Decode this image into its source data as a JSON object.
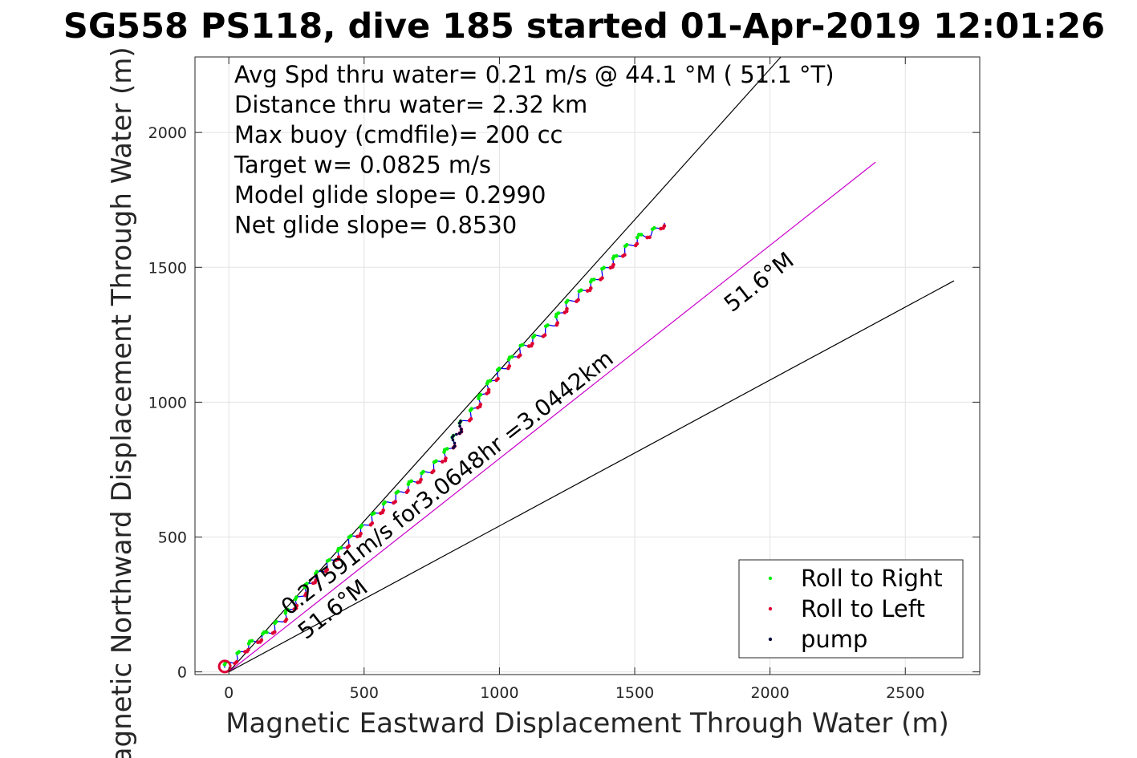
{
  "chart_data": {
    "type": "line",
    "title": "SG558 PS118, dive 185 started 01-Apr-2019 12:01:26",
    "xlabel": "Magnetic Eastward Displacement Through Water (m)",
    "ylabel": "Magnetic Northward Displacement Through Water (m)",
    "xlim": [
      -125,
      2775
    ],
    "ylim": [
      -10,
      2280
    ],
    "xticks": [
      0,
      500,
      1000,
      1500,
      2000,
      2500
    ],
    "yticks": [
      0,
      500,
      1000,
      1500,
      2000
    ],
    "grid": true,
    "info_lines": [
      "Avg Spd thru water=  0.21 m/s @  44.1 °M ( 51.1 °T)",
      "Distance thru water=  2.32 km",
      "Max buoy (cmdfile)= 200 cc",
      "Target w= 0.0825 m/s",
      "Model glide slope= 0.2990",
      "Net glide slope= 0.8530"
    ],
    "reference_lines": [
      {
        "kind": "upper-bound",
        "from": [
          0,
          0
        ],
        "to": [
          2040,
          2280
        ],
        "color": "#000000"
      },
      {
        "kind": "heading",
        "from": [
          0,
          0
        ],
        "to": [
          2390,
          1890
        ],
        "color": "#cc00cc"
      },
      {
        "kind": "lower-bound",
        "from": [
          0,
          0
        ],
        "to": [
          2680,
          1450
        ],
        "color": "#000000"
      }
    ],
    "track": {
      "color": "#0000ff",
      "points": [
        [
          -15,
          15
        ],
        [
          0,
          30
        ],
        [
          30,
          50
        ],
        [
          60,
          85
        ],
        [
          100,
          115
        ],
        [
          150,
          145
        ],
        [
          200,
          195
        ],
        [
          245,
          250
        ],
        [
          280,
          300
        ],
        [
          310,
          340
        ],
        [
          345,
          375
        ],
        [
          395,
          425
        ],
        [
          440,
          480
        ],
        [
          500,
          535
        ],
        [
          560,
          600
        ],
        [
          620,
          650
        ],
        [
          680,
          700
        ],
        [
          735,
          740
        ],
        [
          790,
          790
        ],
        [
          830,
          850
        ],
        [
          855,
          910
        ],
        [
          900,
          960
        ],
        [
          930,
          1010
        ],
        [
          960,
          1060
        ],
        [
          990,
          1100
        ],
        [
          1030,
          1140
        ],
        [
          1085,
          1200
        ],
        [
          1140,
          1240
        ],
        [
          1200,
          1290
        ],
        [
          1250,
          1360
        ],
        [
          1300,
          1400
        ],
        [
          1355,
          1450
        ],
        [
          1410,
          1510
        ],
        [
          1460,
          1560
        ],
        [
          1520,
          1610
        ],
        [
          1570,
          1630
        ],
        [
          1610,
          1665
        ]
      ],
      "wiggle_amplitude": 12,
      "wiggle_wavelength": 60
    },
    "dive_annotation": "0.27591m/s for3.0648hr =3.0442km",
    "heading_label": "51.6°M",
    "heading_label_2": "51.6°M",
    "legend_position": "bottom-right",
    "series": [
      {
        "name": "Roll to Right",
        "color": "#00ee00",
        "marker": "dot"
      },
      {
        "name": "Roll to Left",
        "color": "#dd0033",
        "marker": "dot"
      },
      {
        "name": "pump",
        "color": "#000040",
        "marker": "dot"
      }
    ]
  }
}
